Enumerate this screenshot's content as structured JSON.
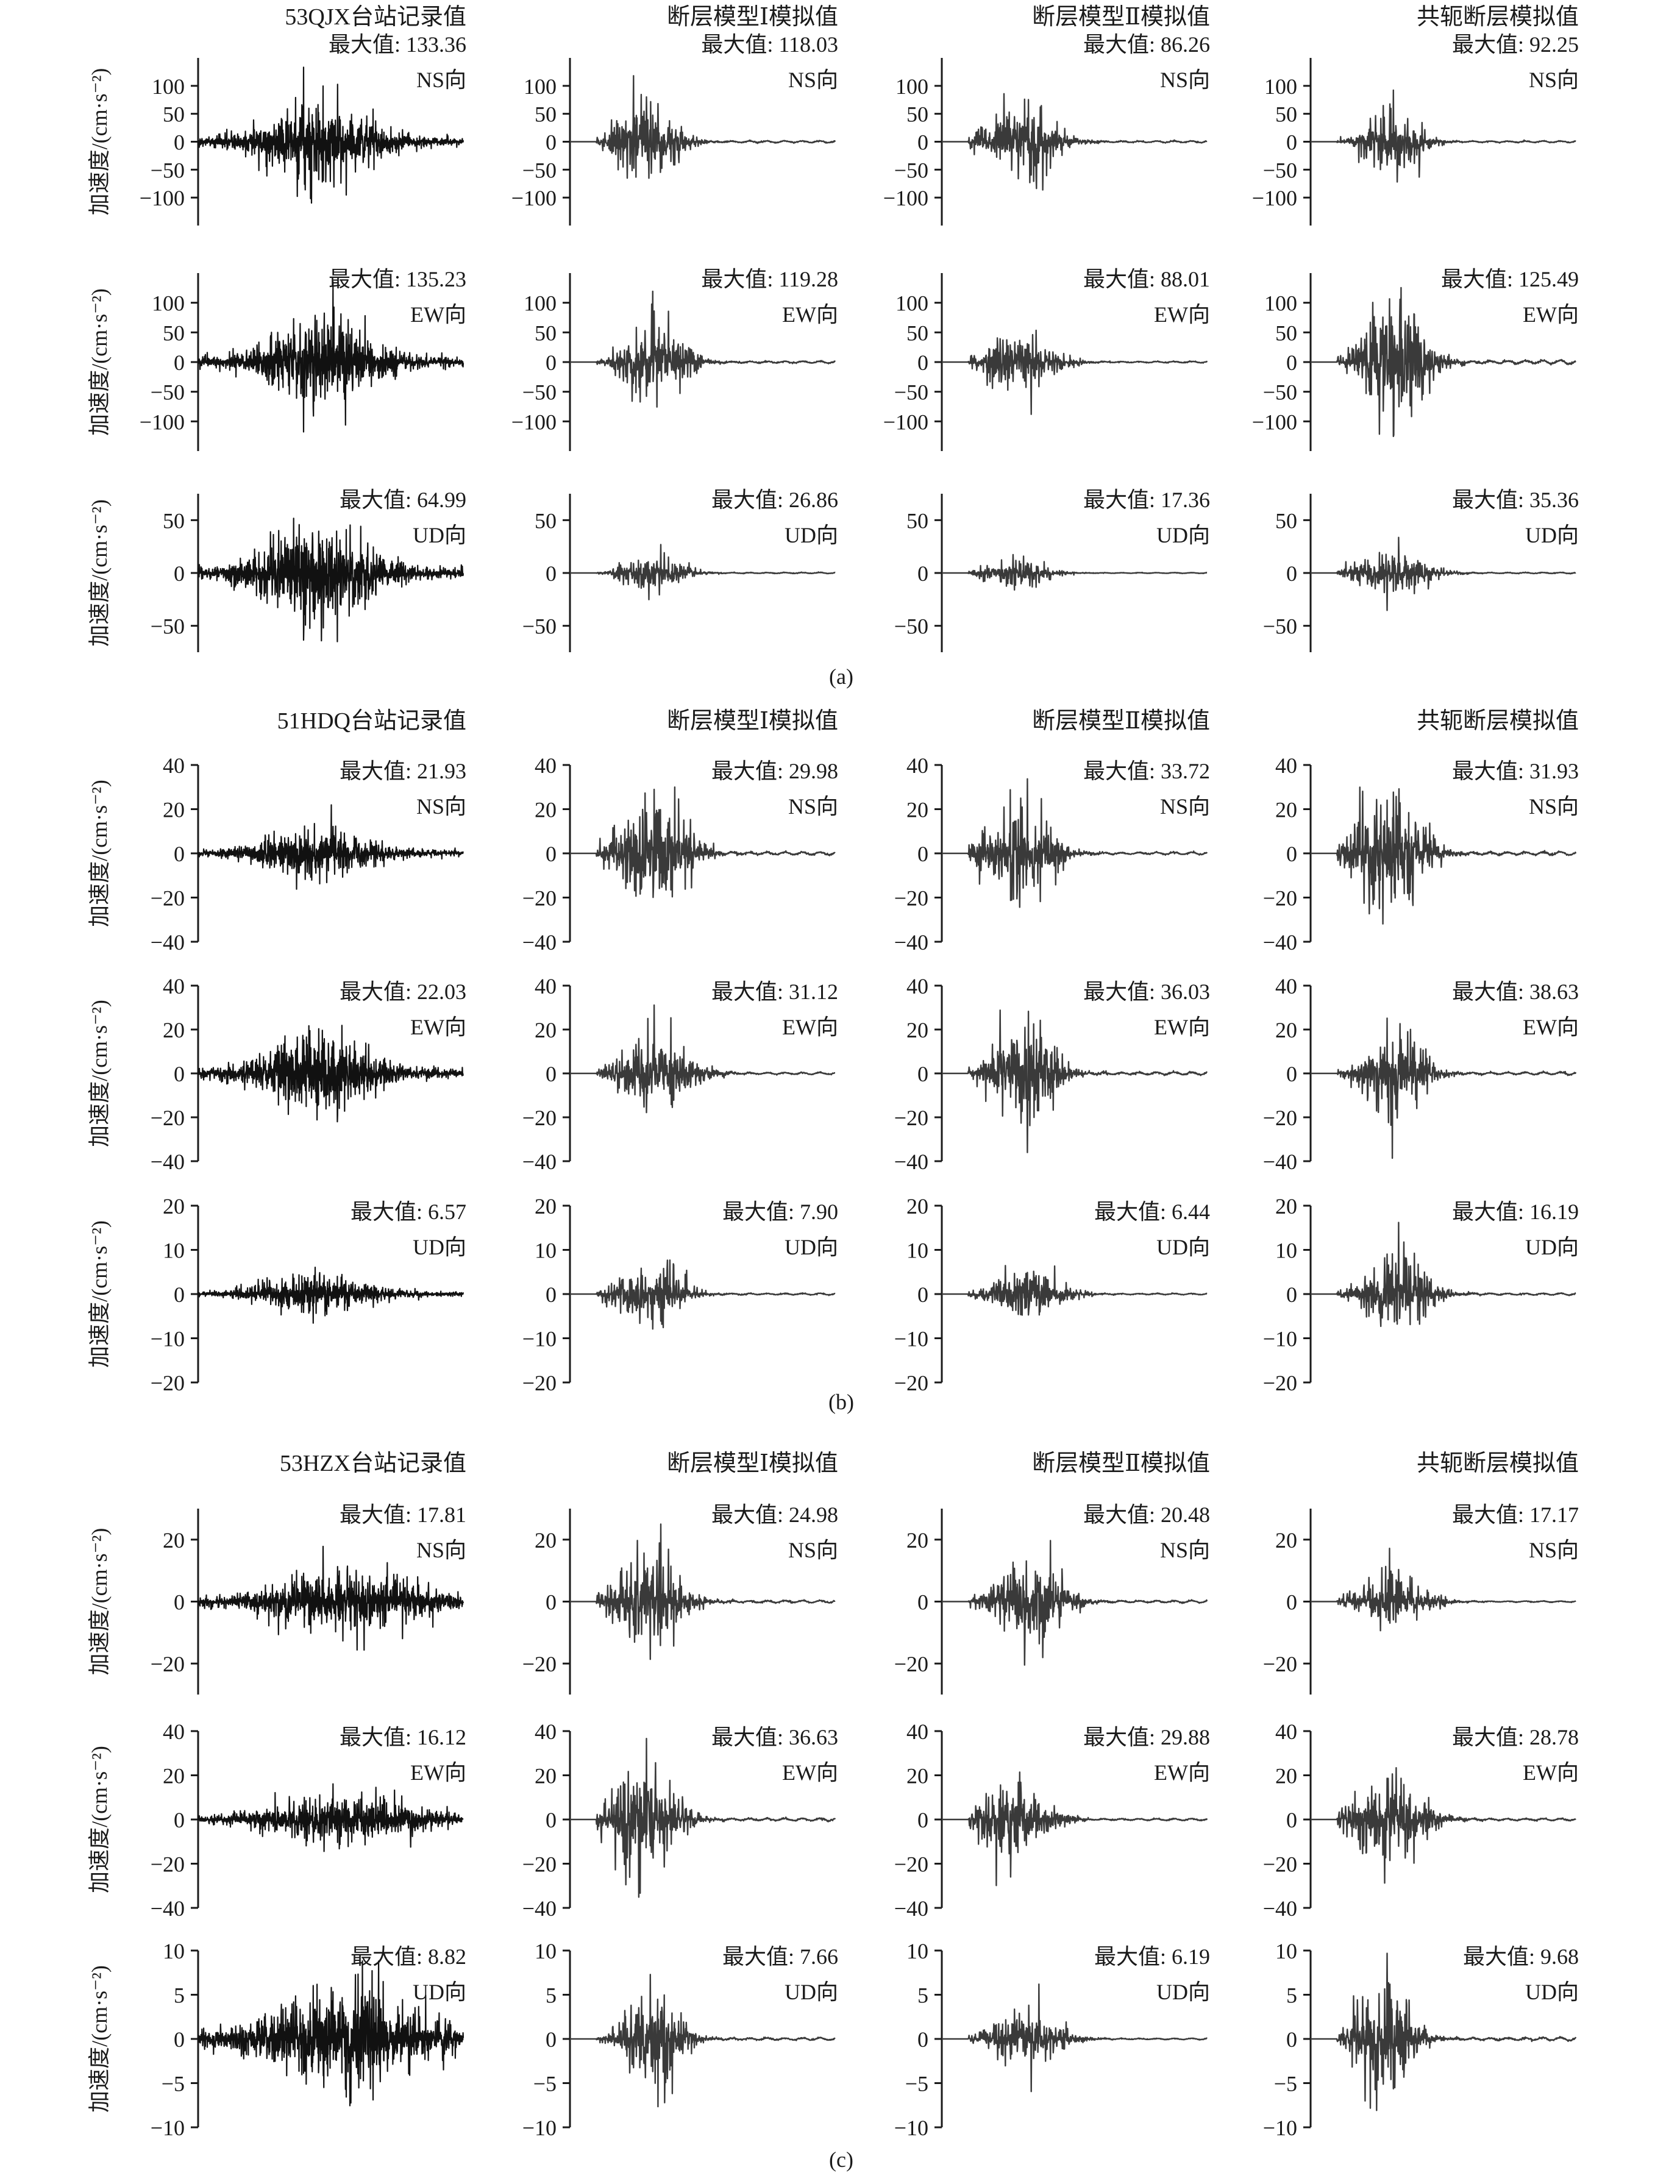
{
  "figure": {
    "panel_labels": [
      "(a)",
      "(b)",
      "(c)"
    ],
    "ylabel": "加速度/(cm·s⁻²)",
    "max_prefix": "最大值: ",
    "trace_colors": {
      "recorded": "#111111",
      "simulated": "#3a3a3a"
    }
  },
  "chart_data": [
    {
      "panel": "(a)",
      "type": "line",
      "columns": [
        "53QJX台站记录值",
        "断层模型Ⅰ模拟值",
        "断层模型Ⅱ模拟值",
        "共轭断层模拟值"
      ],
      "rows": [
        {
          "component": "NS向",
          "ylim": [
            -150,
            150
          ],
          "yticks": [
            100,
            50,
            0,
            -50,
            -100
          ],
          "max_values": [
            "133.36",
            "118.03",
            "86.26",
            "92.25"
          ]
        },
        {
          "component": "EW向",
          "ylim": [
            -150,
            150
          ],
          "yticks": [
            100,
            50,
            0,
            -50,
            -100
          ],
          "max_values": [
            "135.23",
            "119.28",
            "88.01",
            "125.49"
          ]
        },
        {
          "component": "UD向",
          "ylim": [
            -75,
            75
          ],
          "yticks": [
            50,
            0,
            -50
          ],
          "max_values": [
            "64.99",
            "26.86",
            "17.36",
            "35.36"
          ]
        }
      ]
    },
    {
      "panel": "(b)",
      "type": "line",
      "columns": [
        "51HDQ台站记录值",
        "断层模型Ⅰ模拟值",
        "断层模型Ⅱ模拟值",
        "共轭断层模拟值"
      ],
      "rows": [
        {
          "component": "NS向",
          "ylim": [
            -40,
            40
          ],
          "yticks": [
            40,
            20,
            0,
            -20,
            -40
          ],
          "max_values": [
            "21.93",
            "29.98",
            "33.72",
            "31.93"
          ]
        },
        {
          "component": "EW向",
          "ylim": [
            -40,
            40
          ],
          "yticks": [
            40,
            20,
            0,
            -20,
            -40
          ],
          "max_values": [
            "22.03",
            "31.12",
            "36.03",
            "38.63"
          ]
        },
        {
          "component": "UD向",
          "ylim": [
            -20,
            20
          ],
          "yticks": [
            20,
            10,
            0,
            -10,
            -20
          ],
          "max_values": [
            "6.57",
            "7.90",
            "6.44",
            "16.19"
          ]
        }
      ]
    },
    {
      "panel": "(c)",
      "type": "line",
      "columns": [
        "53HZX台站记录值",
        "断层模型Ⅰ模拟值",
        "断层模型Ⅱ模拟值",
        "共轭断层模拟值"
      ],
      "rows": [
        {
          "component": "NS向",
          "ylim": [
            -30,
            30
          ],
          "yticks": [
            20,
            0,
            -20
          ],
          "max_values": [
            "17.81",
            "24.98",
            "20.48",
            "17.17"
          ]
        },
        {
          "component": "EW向",
          "ylim": [
            -40,
            40
          ],
          "yticks": [
            40,
            20,
            0,
            -20,
            -40
          ],
          "max_values": [
            "16.12",
            "36.63",
            "29.88",
            "28.78"
          ]
        },
        {
          "component": "UD向",
          "ylim": [
            -10,
            10
          ],
          "yticks": [
            10,
            5,
            0,
            -5,
            -10
          ],
          "max_values": [
            "8.82",
            "7.66",
            "6.19",
            "9.68"
          ]
        }
      ]
    }
  ]
}
